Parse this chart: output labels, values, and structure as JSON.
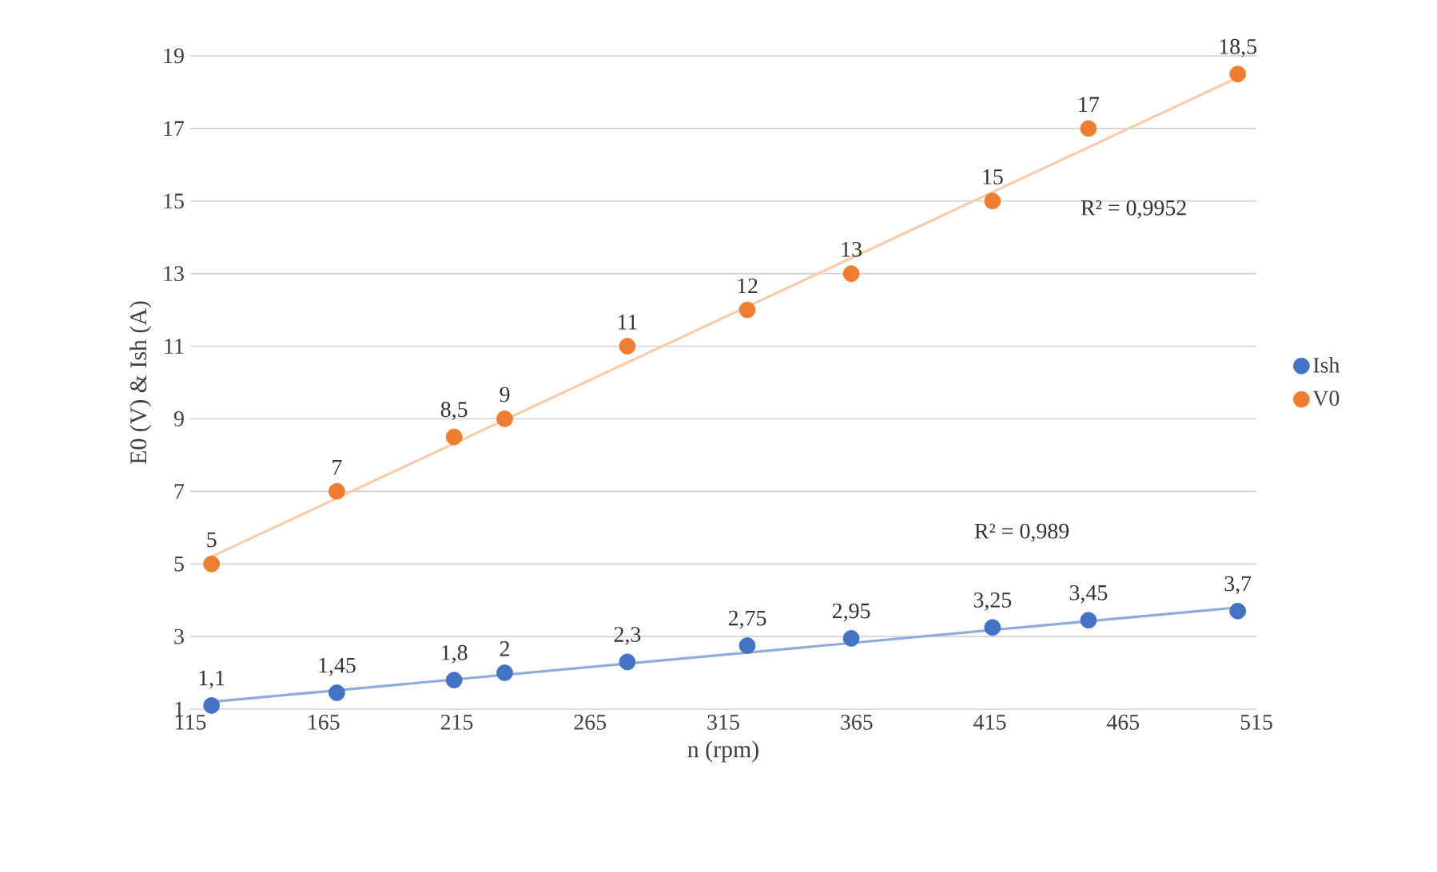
{
  "chart_data": {
    "type": "scatter",
    "xlabel": "n (rpm)",
    "ylabel": "E0 (V) & Ish (A)",
    "xlim": [
      115,
      515
    ],
    "xticks": [
      115,
      165,
      215,
      265,
      315,
      365,
      415,
      465,
      515
    ],
    "ylim": [
      1,
      19
    ],
    "yticks": [
      1,
      3,
      5,
      7,
      9,
      11,
      13,
      15,
      17,
      19
    ],
    "grid": "y",
    "legend": "right",
    "marker": "circle",
    "series": [
      {
        "name": "Ish",
        "color": "#4472c4",
        "x": [
          123,
          170,
          214,
          233,
          279,
          324,
          363,
          416,
          452,
          508
        ],
        "values": [
          1.1,
          1.45,
          1.8,
          2,
          2.3,
          2.75,
          2.95,
          3.25,
          3.45,
          3.7
        ],
        "value_labels": [
          "1,1",
          "1,45",
          "1,8",
          "2",
          "2,3",
          "2,75",
          "2,95",
          "3,25",
          "3,45",
          "3,7"
        ]
      },
      {
        "name": "V0",
        "color": "#ed7d31",
        "x": [
          123,
          170,
          214,
          233,
          279,
          324,
          363,
          416,
          452,
          508
        ],
        "values": [
          5,
          7,
          8.5,
          9,
          11,
          12,
          13,
          15,
          17,
          18.5
        ],
        "value_labels": [
          "5",
          "7",
          "8,5",
          "9",
          "11",
          "12",
          "13",
          "15",
          "17",
          "18,5"
        ]
      },
      {
        "type": "line",
        "marker": "none",
        "color": "#8faadc",
        "x": [
          123,
          508
        ],
        "values": [
          1.2,
          3.8
        ]
      },
      {
        "type": "line",
        "marker": "none",
        "color": "#f8cbad",
        "x": [
          123,
          508
        ],
        "values": [
          5.2,
          18.4
        ]
      }
    ],
    "annotations": [
      "R² = 0,9952",
      "R² = 0,989"
    ]
  }
}
